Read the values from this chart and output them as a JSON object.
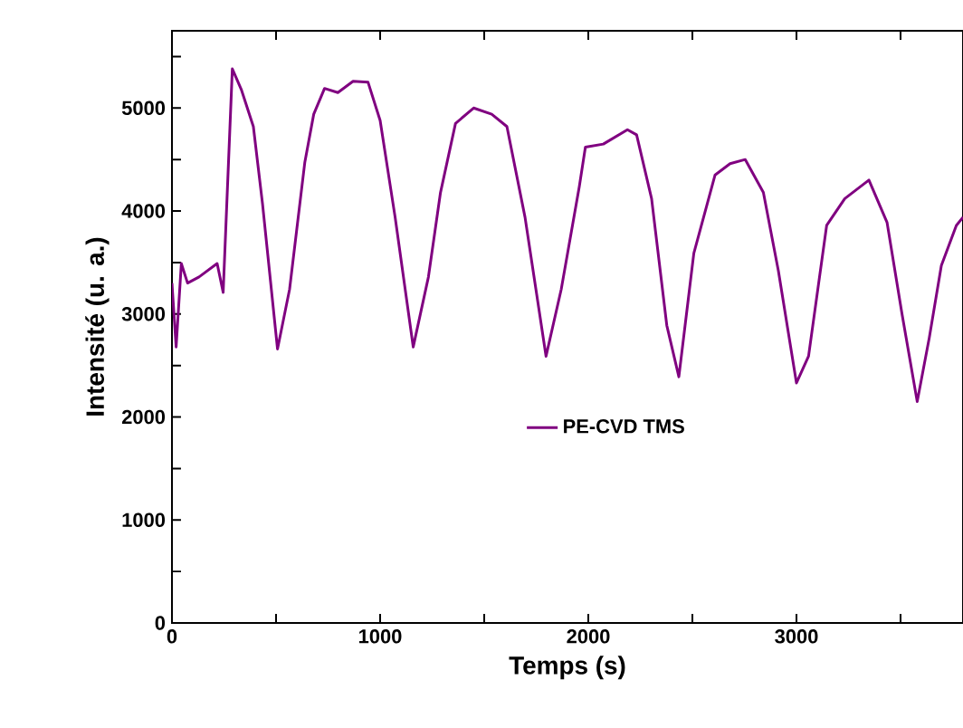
{
  "chart_data": {
    "type": "line",
    "xlabel": "Temps (s)",
    "ylabel": "Intensité (u. a.)",
    "xlim": [
      0,
      3800
    ],
    "ylim": [
      0,
      5750
    ],
    "xticks": [
      0,
      {
        "value": 500,
        "label": null
      },
      1000,
      {
        "value": 1500,
        "label": null
      },
      2000,
      {
        "value": 2500,
        "label": null
      },
      3000,
      {
        "value": 3500,
        "label": null
      }
    ],
    "yticks": [
      0,
      {
        "value": 500,
        "label": null
      },
      1000,
      {
        "value": 1500,
        "label": null
      },
      2000,
      {
        "value": 2500,
        "label": null
      },
      3000,
      {
        "value": 3500,
        "label": null
      },
      4000,
      {
        "value": 4500,
        "label": null
      },
      5000,
      {
        "value": 5500,
        "label": null
      }
    ],
    "legend": "center",
    "marker": "none",
    "line_style": "solid",
    "series": [
      {
        "name": "PE-CVD TMS",
        "color": "#800080",
        "x": [
          0,
          20,
          45,
          75,
          130,
          217,
          246,
          290,
          333,
          391,
          435,
          507,
          565,
          638,
          681,
          733,
          797,
          870,
          942,
          1000,
          1072,
          1159,
          1232,
          1290,
          1362,
          1449,
          1536,
          1609,
          1696,
          1797,
          1870,
          1957,
          1986,
          2072,
          2188,
          2232,
          2304,
          2377,
          2435,
          2507,
          2609,
          2681,
          2754,
          2841,
          2913,
          3000,
          3058,
          3145,
          3232,
          3348,
          3435,
          3507,
          3580,
          3638,
          3696,
          3768,
          3800
        ],
        "values": [
          3300,
          2680,
          3490,
          3300,
          3360,
          3490,
          3210,
          5380,
          5180,
          4820,
          4070,
          2660,
          3240,
          4470,
          4940,
          5190,
          5150,
          5260,
          5250,
          4880,
          3940,
          2680,
          3360,
          4180,
          4850,
          5000,
          4940,
          4820,
          3940,
          2590,
          3240,
          4240,
          4620,
          4650,
          4790,
          4740,
          4120,
          2890,
          2390,
          3590,
          4350,
          4460,
          4500,
          4180,
          3420,
          2330,
          2590,
          3860,
          4120,
          4300,
          3890,
          3000,
          2150,
          2770,
          3470,
          3860,
          3940
        ]
      }
    ]
  }
}
